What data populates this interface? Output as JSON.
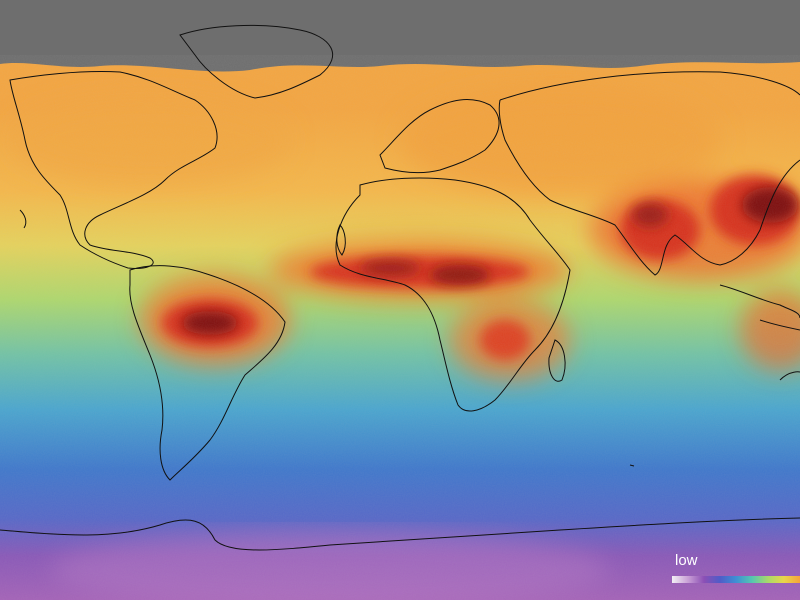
{
  "legend": {
    "low_label": "low",
    "gradient_colors": [
      "#f2f0f4",
      "#c9a0d6",
      "#8c4fb5",
      "#4f5cc8",
      "#3f8fd4",
      "#55c6b0",
      "#a9d96a",
      "#e9d54a",
      "#f5a33a"
    ]
  },
  "colors": {
    "no_data": "#6e6e6e",
    "very_high": "#7e0b0b",
    "high": "#d42a1a",
    "elevated": "#f47a2e",
    "moderate": "#f3cf4c",
    "low_mid": "#8fd082",
    "low": "#3fa0d0",
    "very_low": "#3f5fc4",
    "lowest": "#8a54b6",
    "coastline": "#101010"
  }
}
